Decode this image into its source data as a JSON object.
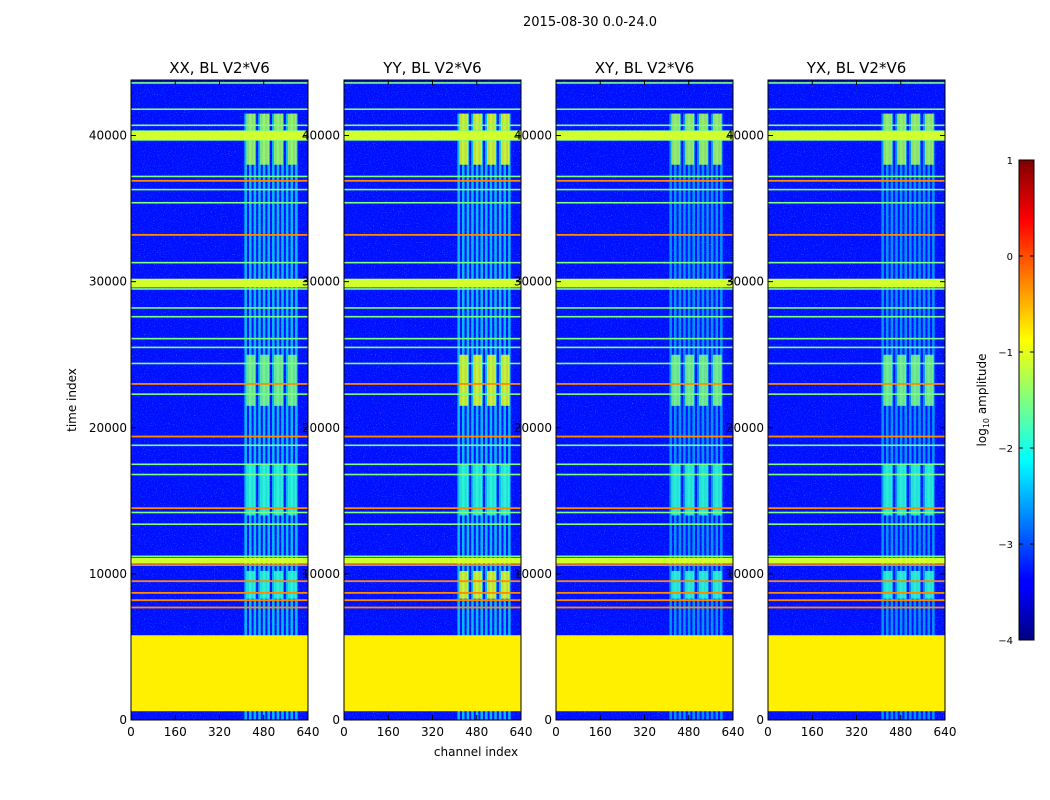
{
  "chart_data": {
    "type": "heatmap",
    "suptitle": "2015-08-30 0.0-24.0",
    "xlabel": "channel index",
    "ylabel": "time index",
    "xlim": [
      0,
      640
    ],
    "ylim": [
      0,
      43800
    ],
    "xticks": [
      "0",
      "160",
      "320",
      "480",
      "640"
    ],
    "xtick_values": [
      0,
      160,
      320,
      480,
      640
    ],
    "yticks": [
      "0",
      "10000",
      "20000",
      "30000",
      "40000"
    ],
    "ytick_values": [
      0,
      10000,
      20000,
      30000,
      40000
    ],
    "panels": [
      {
        "title": "XX, BL V2*V6",
        "polarization": "XX"
      },
      {
        "title": "YY, BL V2*V6",
        "polarization": "YY"
      },
      {
        "title": "XY, BL V2*V6",
        "polarization": "XY"
      },
      {
        "title": "YX, BL V2*V6",
        "polarization": "YX"
      }
    ],
    "colorbar": {
      "label": "log10 amplitude",
      "label_main": "log",
      "label_sub": "10",
      "label_rest": " amplitude",
      "range": [
        -4,
        1
      ],
      "ticks": [
        "1",
        "0",
        "−1",
        "−2",
        "−3",
        "−4"
      ],
      "tick_values": [
        1,
        0,
        -1,
        -2,
        -3,
        -4
      ],
      "colormap": "jet"
    },
    "features": {
      "flagged_band_time": [
        600,
        5800
      ],
      "flagged_value_log10": -0.8,
      "background_log10": -3.3,
      "rfi_channel_range": [
        410,
        610
      ],
      "orange_lines_time": [
        36900,
        33200,
        23000,
        19400,
        14500,
        10600,
        9500,
        8700,
        8200,
        7700
      ],
      "bright_lines_time": [
        43600,
        41800,
        40700,
        40300,
        39700,
        37200,
        36300,
        35400,
        31300,
        30000,
        29500,
        28200,
        27600,
        26100,
        25500,
        24400,
        22300,
        18800,
        17500,
        16800,
        14200,
        13400,
        11200,
        10900,
        10800
      ]
    }
  }
}
